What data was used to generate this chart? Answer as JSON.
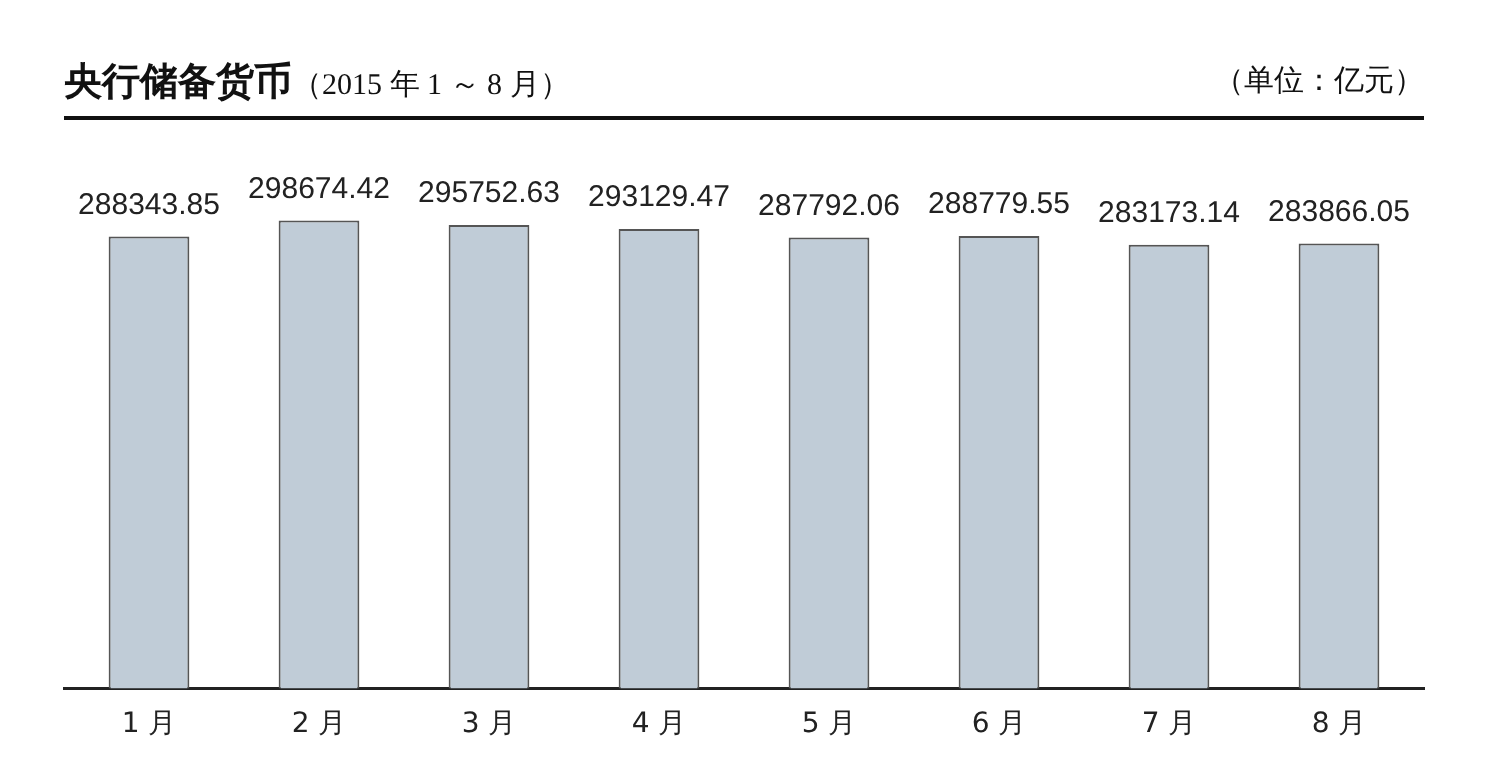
{
  "chart_data": {
    "type": "bar",
    "title": "央行储备货币",
    "subtitle": "（2015 年 1 ～ 8 月）",
    "annotations": [
      "（单位：亿元）"
    ],
    "categories": [
      "1 月",
      "2 月",
      "3 月",
      "4 月",
      "5 月",
      "6 月",
      "7 月",
      "8 月"
    ],
    "values": [
      288343.85,
      298674.42,
      295752.63,
      293129.47,
      287792.06,
      288779.55,
      283173.14,
      283866.05
    ],
    "color": "#c0ccd7",
    "data_labels": true
  }
}
